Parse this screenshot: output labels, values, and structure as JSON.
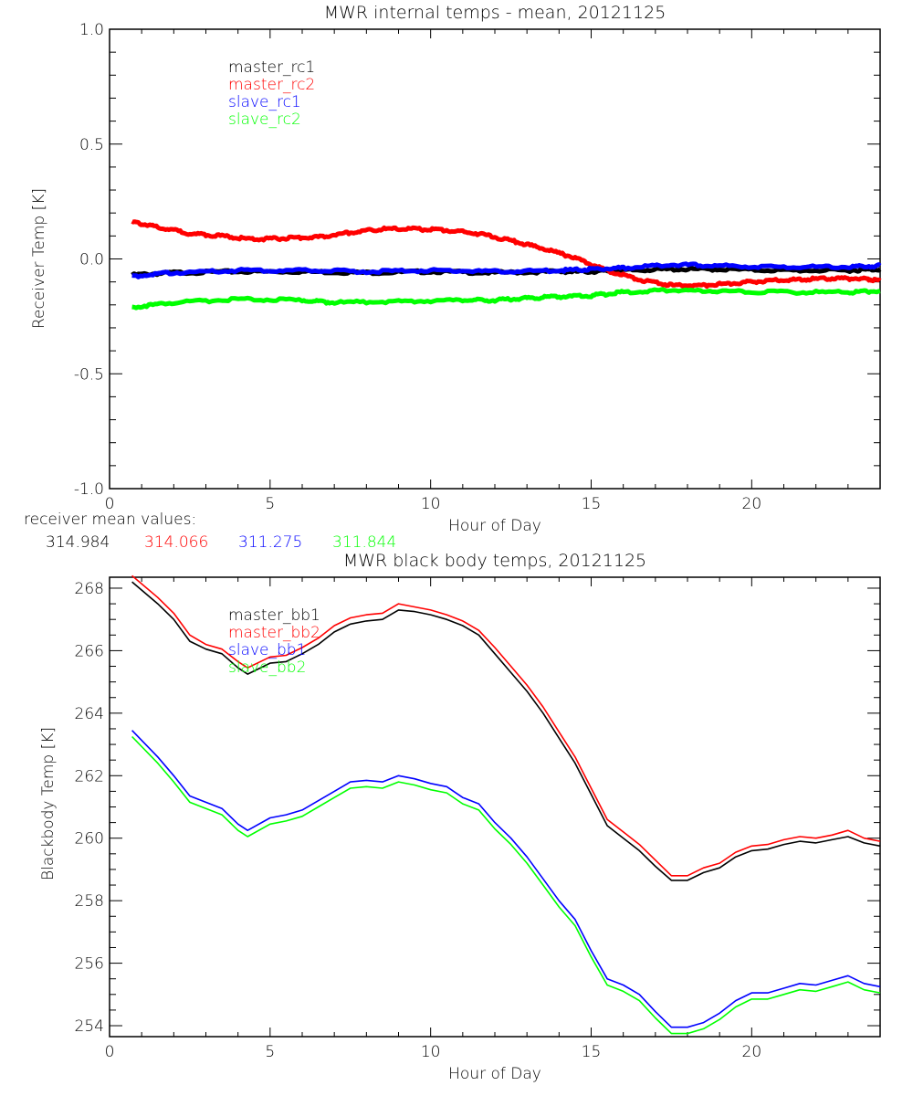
{
  "chart_data": [
    {
      "type": "line",
      "title": "MWR internal temps - mean, 20121125",
      "xlabel": "Hour of Day",
      "ylabel": "Receiver Temp [K]",
      "xlim": [
        0,
        24
      ],
      "ylim": [
        -1.0,
        1.0
      ],
      "xticks": [
        "0",
        "5",
        "10",
        "15",
        "20"
      ],
      "xtick_values": [
        0,
        5,
        10,
        15,
        20
      ],
      "yticks": [
        "-1.0",
        "-0.5",
        "0.0",
        "0.5",
        "1.0"
      ],
      "ytick_values": [
        -1.0,
        -0.5,
        0.0,
        0.5,
        1.0
      ],
      "grid": false,
      "legend_position": "top-left",
      "footer_label": "receiver mean values:",
      "series": [
        {
          "name": "master_rc1",
          "color": "#000000",
          "mean_value": "314.984",
          "x": [
            0.7,
            2,
            4,
            6,
            8,
            10,
            12,
            14,
            15,
            16,
            17.5,
            19,
            21,
            23,
            24
          ],
          "y": [
            -0.07,
            -0.06,
            -0.055,
            -0.055,
            -0.06,
            -0.055,
            -0.06,
            -0.055,
            -0.055,
            -0.05,
            -0.045,
            -0.045,
            -0.05,
            -0.05,
            -0.045
          ]
        },
        {
          "name": "master_rc2",
          "color": "#ff0000",
          "mean_value": "314.066",
          "x": [
            0.7,
            1.5,
            2.5,
            3.5,
            4.5,
            5.5,
            6.5,
            7.5,
            8.5,
            9.5,
            10.5,
            11.5,
            12.5,
            13.5,
            14.5,
            15.5,
            16.5,
            17.5,
            18.5,
            19.5,
            20.5,
            21.5,
            22.5,
            23.5,
            24
          ],
          "y": [
            0.16,
            0.14,
            0.11,
            0.1,
            0.085,
            0.09,
            0.095,
            0.115,
            0.13,
            0.13,
            0.125,
            0.11,
            0.08,
            0.045,
            0.005,
            -0.05,
            -0.09,
            -0.115,
            -0.115,
            -0.105,
            -0.095,
            -0.09,
            -0.085,
            -0.085,
            -0.095
          ]
        },
        {
          "name": "slave_rc1",
          "color": "#0000ff",
          "mean_value": "311.275",
          "x": [
            0.7,
            2,
            4,
            6,
            8,
            10,
            12,
            14,
            15,
            16,
            17.5,
            19,
            21,
            23,
            24
          ],
          "y": [
            -0.075,
            -0.06,
            -0.05,
            -0.05,
            -0.055,
            -0.05,
            -0.055,
            -0.05,
            -0.045,
            -0.04,
            -0.025,
            -0.03,
            -0.035,
            -0.035,
            -0.03
          ]
        },
        {
          "name": "slave_rc2",
          "color": "#00ff00",
          "mean_value": "311.844",
          "x": [
            0.7,
            2,
            4,
            6,
            7,
            9,
            11,
            12,
            13,
            14,
            15,
            16,
            17.5,
            19,
            21,
            23,
            24
          ],
          "y": [
            -0.21,
            -0.19,
            -0.175,
            -0.18,
            -0.19,
            -0.185,
            -0.18,
            -0.18,
            -0.17,
            -0.165,
            -0.16,
            -0.145,
            -0.135,
            -0.14,
            -0.145,
            -0.145,
            -0.14
          ]
        }
      ]
    },
    {
      "type": "line",
      "title": "MWR black body temps, 20121125",
      "xlabel": "Hour of Day",
      "ylabel": "Blackbody Temp [K]",
      "xlim": [
        0,
        24
      ],
      "ylim": [
        253.65,
        268.35
      ],
      "xticks": [
        "0",
        "5",
        "10",
        "15",
        "20"
      ],
      "xtick_values": [
        0,
        5,
        10,
        15,
        20
      ],
      "yticks": [
        "254",
        "256",
        "258",
        "260",
        "262",
        "264",
        "266",
        "268"
      ],
      "ytick_values": [
        254,
        256,
        258,
        260,
        262,
        264,
        266,
        268
      ],
      "grid": false,
      "legend_position": "top-left",
      "series": [
        {
          "name": "master_bb1",
          "color": "#000000",
          "x": [
            0.7,
            1.5,
            2,
            2.5,
            3,
            3.5,
            4,
            4.3,
            5,
            5.5,
            6,
            6.5,
            7,
            7.5,
            8,
            8.5,
            9,
            9.5,
            10,
            10.5,
            11,
            11.5,
            12,
            12.5,
            13,
            13.5,
            14,
            14.5,
            15,
            15.5,
            16,
            16.5,
            17,
            17.5,
            18,
            18.5,
            19,
            19.5,
            20,
            20.5,
            21,
            21.5,
            22,
            22.5,
            23,
            23.5,
            24
          ],
          "y": [
            268.2,
            267.5,
            267.0,
            266.3,
            266.05,
            265.9,
            265.45,
            265.25,
            265.6,
            265.65,
            265.9,
            266.2,
            266.6,
            266.85,
            266.95,
            267.0,
            267.3,
            267.25,
            267.15,
            267.0,
            266.8,
            266.5,
            265.9,
            265.3,
            264.7,
            264.0,
            263.2,
            262.4,
            261.4,
            260.4,
            260.0,
            259.6,
            259.1,
            258.65,
            258.65,
            258.9,
            259.05,
            259.4,
            259.6,
            259.65,
            259.8,
            259.9,
            259.85,
            259.95,
            260.05,
            259.85,
            259.75
          ]
        },
        {
          "name": "master_bb2",
          "color": "#ff0000",
          "x": [
            0.7,
            1.5,
            2,
            2.5,
            3,
            3.5,
            4,
            4.3,
            5,
            5.5,
            6,
            6.5,
            7,
            7.5,
            8,
            8.5,
            9,
            9.5,
            10,
            10.5,
            11,
            11.5,
            12,
            12.5,
            13,
            13.5,
            14,
            14.5,
            15,
            15.5,
            16,
            16.5,
            17,
            17.5,
            18,
            18.5,
            19,
            19.5,
            20,
            20.5,
            21,
            21.5,
            22,
            22.5,
            23,
            23.5,
            24
          ],
          "y": [
            268.4,
            267.7,
            267.2,
            266.5,
            266.2,
            266.05,
            265.65,
            265.45,
            265.8,
            265.85,
            266.1,
            266.4,
            266.8,
            267.05,
            267.15,
            267.2,
            267.5,
            267.4,
            267.3,
            267.15,
            266.95,
            266.65,
            266.1,
            265.5,
            264.9,
            264.2,
            263.4,
            262.6,
            261.6,
            260.6,
            260.2,
            259.8,
            259.3,
            258.8,
            258.8,
            259.05,
            259.2,
            259.55,
            259.75,
            259.8,
            259.95,
            260.05,
            260.0,
            260.1,
            260.25,
            260.0,
            259.9
          ]
        },
        {
          "name": "slave_bb1",
          "color": "#0000ff",
          "x": [
            0.7,
            1.5,
            2,
            2.5,
            3,
            3.5,
            4,
            4.3,
            5,
            5.5,
            6,
            6.5,
            7,
            7.5,
            8,
            8.5,
            9,
            9.5,
            10,
            10.5,
            11,
            11.5,
            12,
            12.5,
            13,
            13.5,
            14,
            14.5,
            15,
            15.5,
            16,
            16.5,
            17,
            17.5,
            18,
            18.5,
            19,
            19.5,
            20,
            20.5,
            21,
            21.5,
            22,
            22.5,
            23,
            23.5,
            24
          ],
          "y": [
            263.45,
            262.6,
            262.0,
            261.35,
            261.15,
            260.95,
            260.45,
            260.25,
            260.65,
            260.75,
            260.9,
            261.2,
            261.5,
            261.8,
            261.85,
            261.8,
            262.0,
            261.9,
            261.75,
            261.65,
            261.3,
            261.1,
            260.5,
            260.0,
            259.4,
            258.7,
            258.0,
            257.4,
            256.4,
            255.5,
            255.3,
            255.0,
            254.45,
            253.95,
            253.95,
            254.1,
            254.4,
            254.8,
            255.05,
            255.05,
            255.2,
            255.35,
            255.3,
            255.45,
            255.6,
            255.35,
            255.25
          ]
        },
        {
          "name": "slave_bb2",
          "color": "#00ff00",
          "x": [
            0.7,
            1.5,
            2,
            2.5,
            3,
            3.5,
            4,
            4.3,
            5,
            5.5,
            6,
            6.5,
            7,
            7.5,
            8,
            8.5,
            9,
            9.5,
            10,
            10.5,
            11,
            11.5,
            12,
            12.5,
            13,
            13.5,
            14,
            14.5,
            15,
            15.5,
            16,
            16.5,
            17,
            17.5,
            18,
            18.5,
            19,
            19.5,
            20,
            20.5,
            21,
            21.5,
            22,
            22.5,
            23,
            23.5,
            24
          ],
          "y": [
            263.25,
            262.4,
            261.8,
            261.15,
            260.95,
            260.75,
            260.25,
            260.05,
            260.45,
            260.55,
            260.7,
            261.0,
            261.3,
            261.6,
            261.65,
            261.6,
            261.8,
            261.7,
            261.55,
            261.45,
            261.1,
            260.9,
            260.3,
            259.8,
            259.2,
            258.5,
            257.8,
            257.2,
            256.2,
            255.3,
            255.1,
            254.8,
            254.25,
            253.75,
            253.75,
            253.9,
            254.2,
            254.6,
            254.85,
            254.85,
            255.0,
            255.15,
            255.1,
            255.25,
            255.4,
            255.15,
            255.05
          ]
        }
      ]
    }
  ]
}
